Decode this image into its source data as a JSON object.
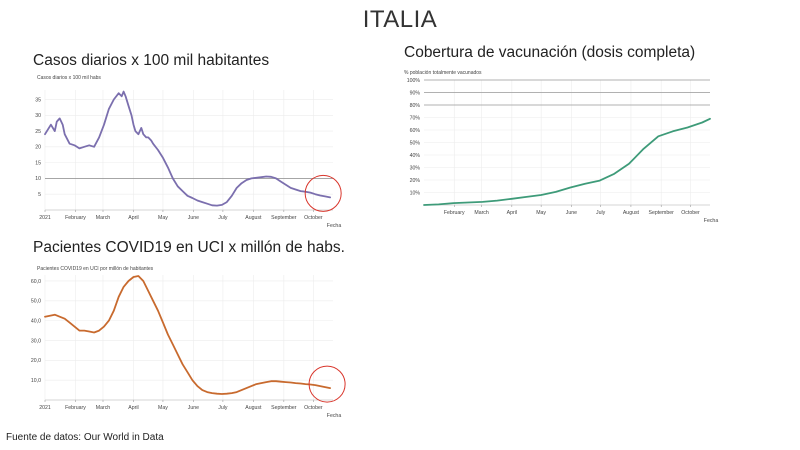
{
  "page_title": "ITALIA",
  "footer": "Fuente de datos: Our World in Data",
  "chart_data": [
    {
      "id": "casos",
      "type": "line",
      "title": "Casos diarios x 100 mil habitantes",
      "ylabel": "Casos diarios x 100 mil habs",
      "xlabel": "Fecha",
      "color": "#7b6fae",
      "highlight_color": "#d9352b",
      "ylim": [
        0,
        38
      ],
      "yticks": [
        5,
        10,
        15,
        20,
        25,
        30,
        35
      ],
      "ytick_labels": [
        "5",
        "10",
        "15",
        "20",
        "25",
        "30",
        "35"
      ],
      "reference_line": 10,
      "xlim": [
        0,
        293
      ],
      "xticks": [
        0,
        31,
        59,
        90,
        120,
        151,
        181,
        212,
        243,
        273
      ],
      "xtick_labels": [
        "2021",
        "February",
        "March",
        "April",
        "May",
        "June",
        "July",
        "August",
        "September",
        "October"
      ],
      "grid": true,
      "highlight_circle_x": 283,
      "x": [
        0,
        6,
        10,
        12,
        15,
        18,
        20,
        25,
        30,
        35,
        40,
        45,
        50,
        55,
        60,
        65,
        70,
        75,
        78,
        80,
        82,
        85,
        88,
        90,
        92,
        95,
        98,
        100,
        103,
        105,
        108,
        110,
        115,
        120,
        125,
        130,
        135,
        140,
        145,
        150,
        155,
        160,
        165,
        170,
        175,
        180,
        185,
        190,
        195,
        200,
        205,
        210,
        215,
        220,
        225,
        230,
        235,
        240,
        245,
        250,
        255,
        260,
        265,
        270,
        275,
        280,
        285,
        290
      ],
      "values": [
        24,
        27,
        25,
        28,
        29,
        27,
        24,
        21,
        20.5,
        19.5,
        20,
        20.5,
        20,
        23,
        27,
        32,
        35,
        37,
        36,
        37.5,
        36,
        33,
        30,
        27,
        25,
        24,
        26,
        24,
        23,
        23,
        22,
        21,
        19,
        16.5,
        13.5,
        10,
        7.5,
        6,
        4.5,
        3.8,
        3,
        2.5,
        2,
        1.5,
        1.4,
        1.6,
        2.5,
        4.5,
        7,
        8.5,
        9.5,
        10,
        10.2,
        10.4,
        10.6,
        10.5,
        10,
        9,
        8,
        7,
        6.5,
        6,
        5.8,
        5.5,
        5,
        4.6,
        4.3,
        4
      ]
    },
    {
      "id": "vacunacion",
      "type": "line",
      "title": "Cobertura de vacunación (dosis completa)",
      "ylabel": "% población totalmente vacunados",
      "xlabel": "Fecha",
      "color": "#3e9b79",
      "ylim": [
        0,
        100
      ],
      "yticks": [
        10,
        20,
        30,
        40,
        50,
        60,
        70,
        80,
        90,
        100
      ],
      "ytick_labels": [
        "10%",
        "20%",
        "30%",
        "40%",
        "50%",
        "60%",
        "70%",
        "80%",
        "90%",
        "100%"
      ],
      "reference_lines": [
        80,
        90,
        100
      ],
      "xlim": [
        0,
        293
      ],
      "xticks": [
        31,
        59,
        90,
        120,
        151,
        181,
        212,
        243,
        273
      ],
      "xtick_labels": [
        "February",
        "March",
        "April",
        "May",
        "June",
        "July",
        "August",
        "September",
        "October"
      ],
      "grid": true,
      "x": [
        0,
        15,
        30,
        45,
        60,
        75,
        90,
        105,
        120,
        135,
        150,
        165,
        180,
        195,
        210,
        225,
        240,
        255,
        270,
        285,
        293
      ],
      "values": [
        0,
        0.5,
        1.5,
        2,
        2.5,
        3.5,
        5,
        6.5,
        8,
        10.5,
        14,
        17,
        19.5,
        25,
        33,
        45,
        55,
        59,
        62,
        66,
        69
      ]
    },
    {
      "id": "uci",
      "type": "line",
      "title": "Pacientes COVID19 en UCI x millón de habs.",
      "ylabel": "Pacientes COVID19 en UCI por millón de habitantes",
      "xlabel": "Fecha",
      "color": "#c86a2e",
      "highlight_color": "#d9352b",
      "ylim": [
        0,
        63
      ],
      "yticks": [
        10,
        20,
        30,
        40,
        50,
        60
      ],
      "ytick_labels": [
        "10,0",
        "20,0",
        "30,0",
        "40,0",
        "50,0",
        "60,0"
      ],
      "xlim": [
        0,
        293
      ],
      "xticks": [
        0,
        31,
        59,
        90,
        120,
        151,
        181,
        212,
        243,
        273
      ],
      "xtick_labels": [
        "2021",
        "February",
        "March",
        "April",
        "May",
        "June",
        "July",
        "August",
        "September",
        "October"
      ],
      "grid": true,
      "highlight_circle_x": 287,
      "x": [
        0,
        5,
        10,
        15,
        20,
        25,
        30,
        35,
        40,
        45,
        50,
        55,
        60,
        65,
        70,
        75,
        80,
        85,
        90,
        95,
        100,
        105,
        110,
        115,
        120,
        125,
        130,
        135,
        140,
        145,
        150,
        155,
        160,
        165,
        170,
        175,
        180,
        185,
        190,
        195,
        200,
        205,
        210,
        215,
        220,
        225,
        230,
        235,
        240,
        245,
        250,
        255,
        260,
        265,
        270,
        275,
        280,
        285,
        290
      ],
      "values": [
        42,
        42.5,
        43,
        42,
        41,
        39,
        37,
        35,
        35,
        34.5,
        34,
        35,
        37,
        40,
        45,
        52,
        57,
        60,
        62,
        62.5,
        60,
        55,
        50,
        45,
        39,
        33,
        28,
        23,
        18,
        14,
        10,
        7,
        5,
        4,
        3.5,
        3.2,
        3,
        3.2,
        3.5,
        4,
        5,
        6,
        7,
        8,
        8.5,
        9,
        9.5,
        9.5,
        9.2,
        9,
        8.8,
        8.5,
        8.3,
        8,
        7.8,
        7.5,
        7,
        6.5,
        6
      ]
    }
  ]
}
